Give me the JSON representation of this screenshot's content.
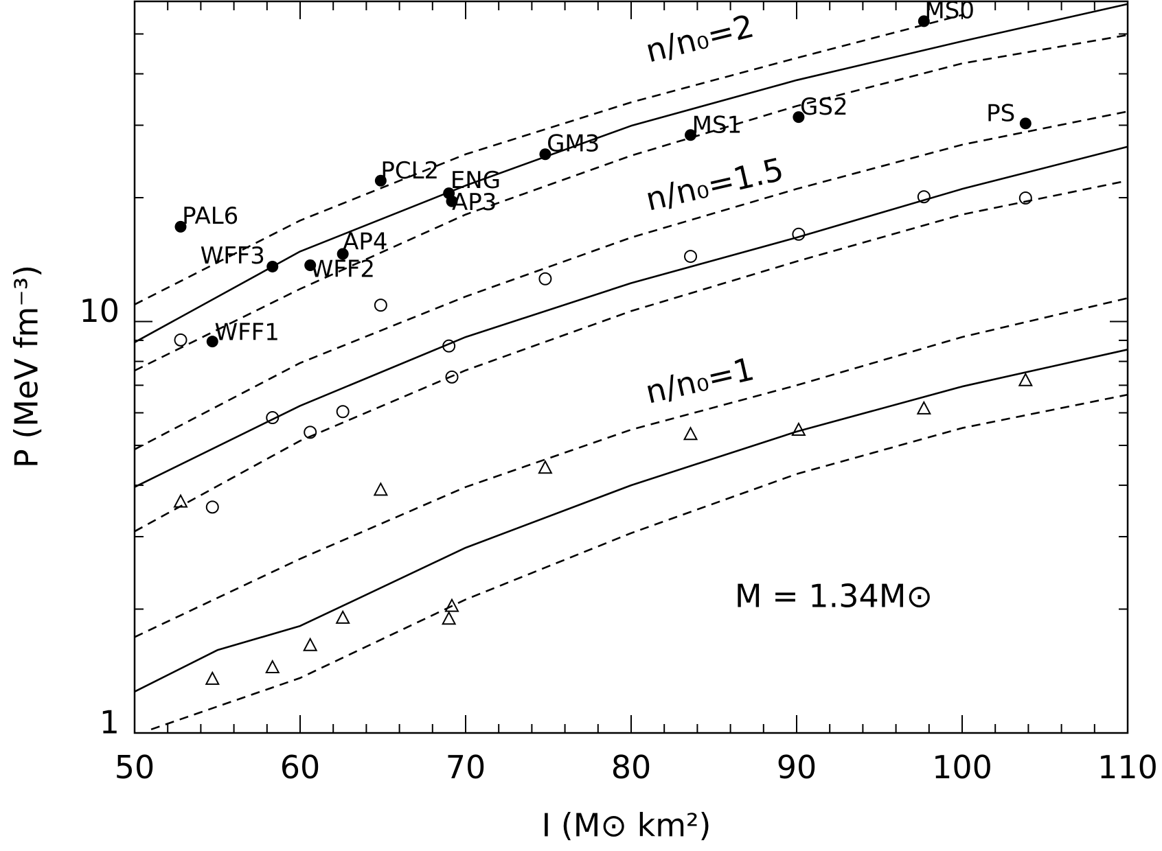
{
  "chart_data": {
    "type": "scatter",
    "xlabel": "I (M⊙ km²)",
    "ylabel": "P (MeV fm⁻³)",
    "xlim": [
      50,
      110
    ],
    "ylim": [
      1,
      60
    ],
    "yscale": "log",
    "xticks": [
      50,
      60,
      70,
      80,
      90,
      100,
      110
    ],
    "xticks_minor": [
      52,
      54,
      56,
      58,
      62,
      64,
      66,
      68,
      72,
      74,
      76,
      78,
      82,
      84,
      86,
      88,
      92,
      94,
      96,
      98,
      102,
      104,
      106,
      108
    ],
    "yticks": [
      1,
      10
    ],
    "yticks_minor": [
      2,
      3,
      4,
      5,
      6,
      7,
      8,
      9,
      20,
      30,
      40,
      50
    ],
    "color": "#000000",
    "labels": [
      "PAL6",
      "WFF3",
      "WFF2",
      "AP4",
      "WFF1",
      "PCL2",
      "ENG",
      "AP3",
      "GM3",
      "MS1",
      "GS2",
      "PS",
      "MS0"
    ],
    "x": [
      52.78,
      58.33,
      60.61,
      62.58,
      54.7,
      64.87,
      68.99,
      69.17,
      74.81,
      83.59,
      90.12,
      103.83,
      97.69
    ],
    "series": [
      {
        "marker": "filled-circle",
        "values": [
          17.0,
          13.6,
          13.7,
          14.6,
          8.94,
          22.0,
          20.5,
          19.6,
          25.5,
          28.4,
          31.4,
          30.3,
          53.7
        ]
      },
      {
        "marker": "open-circle",
        "values": [
          9.02,
          5.84,
          5.38,
          6.04,
          3.54,
          10.96,
          8.72,
          7.33,
          12.7,
          14.4,
          16.3,
          19.96,
          20.1
        ]
      },
      {
        "marker": "open-triangle",
        "values": [
          3.64,
          1.44,
          1.63,
          1.9,
          1.35,
          3.89,
          1.89,
          2.03,
          4.4,
          5.31,
          5.44,
          7.18,
          6.13
        ]
      }
    ],
    "curves": [
      {
        "style": "solid",
        "x": [
          50,
          60,
          70,
          80,
          90,
          100,
          110
        ],
        "values": [
          8.9,
          14.8,
          21.4,
          29.9,
          38.6,
          48.0,
          59.1
        ]
      },
      {
        "style": "dashed",
        "x": [
          50,
          60,
          70,
          80,
          90,
          100
        ],
        "values": [
          11.0,
          17.6,
          25.5,
          34.1,
          43.7,
          55.6
        ]
      },
      {
        "style": "dashed",
        "x": [
          50,
          60,
          70,
          80,
          90,
          100,
          110
        ],
        "values": [
          7.6,
          12.0,
          18.2,
          25.3,
          33.4,
          42.4,
          49.7
        ]
      },
      {
        "style": "solid",
        "x": [
          50,
          60,
          70,
          80,
          90,
          100,
          110
        ],
        "values": [
          3.96,
          6.24,
          9.17,
          12.4,
          16.0,
          21.0,
          26.6
        ]
      },
      {
        "style": "dashed",
        "x": [
          50,
          60,
          70,
          80,
          90,
          100,
          110
        ],
        "values": [
          4.89,
          7.93,
          11.5,
          16.0,
          21.0,
          26.9,
          32.4
        ]
      },
      {
        "style": "dashed",
        "x": [
          50,
          60,
          70,
          80,
          90,
          100,
          110
        ],
        "values": [
          3.09,
          5.13,
          7.61,
          10.6,
          14.0,
          18.2,
          22.0
        ]
      },
      {
        "style": "solid",
        "x": [
          50,
          55,
          60,
          70,
          80,
          90,
          100,
          110
        ],
        "values": [
          1.26,
          1.59,
          1.82,
          2.82,
          4.0,
          5.4,
          6.95,
          8.55
        ]
      },
      {
        "style": "dashed",
        "x": [
          50,
          60,
          70,
          80,
          90,
          100,
          110
        ],
        "values": [
          1.71,
          2.65,
          3.96,
          5.46,
          7.0,
          9.17,
          11.4
        ]
      },
      {
        "style": "dashed",
        "x": [
          51,
          60,
          70,
          80,
          90,
          100,
          110
        ],
        "values": [
          1.02,
          1.36,
          2.11,
          3.06,
          4.26,
          5.51,
          6.64
        ]
      }
    ],
    "annotations": [
      "n/n₀=2",
      "n/n₀=1.5",
      "n/n₀=1",
      "M = 1.34M⊙"
    ]
  }
}
